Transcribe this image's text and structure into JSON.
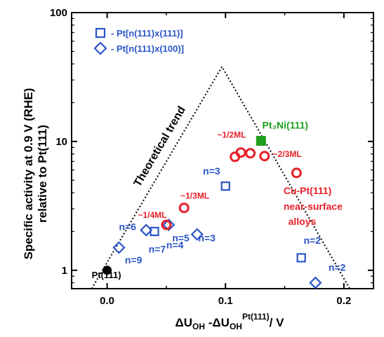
{
  "chart_data": {
    "type": "scatter",
    "xlabel": "ΔU_OH -ΔU_OH^Pt(111) / V",
    "ylabel_line1": "Specific activity at 0.9 V (RHE)",
    "ylabel_line2": "relative to Pt(111)",
    "xlim": [
      -0.03,
      0.225
    ],
    "ylim": [
      0.72,
      100
    ],
    "yscale": "log",
    "x_ticks": [
      0.0,
      0.1,
      0.2
    ],
    "x_tick_labels": [
      "0.0",
      "0.1",
      "0.2"
    ],
    "y_ticks": [
      1,
      10,
      100
    ],
    "y_tick_labels": [
      "1",
      "10",
      "100"
    ],
    "legend_position": "top-left",
    "legend": [
      {
        "marker": "square",
        "label": "- Pt[n(111)x(111)]"
      },
      {
        "marker": "diamond",
        "label": "- Pt[n(111)x(100)]"
      }
    ],
    "theoretical_trend": {
      "label": "Theoretical trend",
      "points": [
        [
          -0.013,
          0.72
        ],
        [
          0.097,
          38
        ],
        [
          0.205,
          0.72
        ]
      ]
    },
    "series": [
      {
        "name": "Pt(111)",
        "marker": "circle-filled",
        "color": "#000000",
        "points": [
          {
            "x": 0.0,
            "y": 1.0
          }
        ]
      },
      {
        "name": "Pt3Ni(111)",
        "marker": "square-filled",
        "color": "#1e9e1e",
        "points": [
          {
            "x": 0.13,
            "y": 10.1
          }
        ]
      },
      {
        "name": "- Pt[n(111)x(111)]",
        "marker": "square",
        "color": "#2a55c8",
        "points": [
          {
            "x": 0.04,
            "y": 2.0
          },
          {
            "x": 0.1,
            "y": 4.5
          },
          {
            "x": 0.164,
            "y": 1.25
          }
        ]
      },
      {
        "name": "- Pt[n(111)x(100)]",
        "marker": "diamond",
        "color": "#2a55c8",
        "points": [
          {
            "x": 0.01,
            "y": 1.5
          },
          {
            "x": 0.033,
            "y": 2.05
          },
          {
            "x": 0.052,
            "y": 2.25
          },
          {
            "x": 0.076,
            "y": 1.9
          },
          {
            "x": 0.176,
            "y": 0.8
          }
        ]
      },
      {
        "name": "Cu-Pt(111) near-surface alloys",
        "marker": "circle",
        "color": "#e8202a",
        "points": [
          {
            "x": 0.05,
            "y": 2.25
          },
          {
            "x": 0.065,
            "y": 3.05
          },
          {
            "x": 0.108,
            "y": 7.6
          },
          {
            "x": 0.113,
            "y": 8.2
          },
          {
            "x": 0.121,
            "y": 8.1
          },
          {
            "x": 0.133,
            "y": 7.7
          },
          {
            "x": 0.16,
            "y": 5.7
          }
        ]
      }
    ],
    "annotations": [
      {
        "text": "Pt(111)",
        "x": -0.013,
        "y": 0.87,
        "color": "#000000",
        "size": 13
      },
      {
        "text": "Pt₃Ni(111)",
        "x": 0.131,
        "y": 12.6,
        "color": "#1e9e1e",
        "size": 14
      },
      {
        "text": "~1/2ML",
        "x": 0.093,
        "y": 10.7,
        "color": "#e8202a",
        "size": 12
      },
      {
        "text": "~2/3ML",
        "x": 0.14,
        "y": 7.6,
        "color": "#e8202a",
        "size": 12
      },
      {
        "text": "~1/3ML",
        "x": 0.062,
        "y": 3.6,
        "color": "#e8202a",
        "size": 12
      },
      {
        "text": "~1/4ML",
        "x": 0.026,
        "y": 2.55,
        "color": "#e8202a",
        "size": 12
      },
      {
        "text": "Cu-Pt(111)",
        "x": 0.149,
        "y": 3.9,
        "color": "#e8202a",
        "size": 14
      },
      {
        "text": "near-surface",
        "x": 0.149,
        "y": 2.95,
        "color": "#e8202a",
        "size": 14
      },
      {
        "text": "alloys",
        "x": 0.153,
        "y": 2.25,
        "color": "#e8202a",
        "size": 14
      },
      {
        "text": "n=3",
        "x": 0.081,
        "y": 5.55,
        "color": "#2a55c8",
        "size": 14
      },
      {
        "text": "n=6",
        "x": 0.01,
        "y": 2.05,
        "color": "#2a55c8",
        "size": 14
      },
      {
        "text": "n=5",
        "x": 0.055,
        "y": 1.68,
        "color": "#2a55c8",
        "size": 14
      },
      {
        "text": "n=3",
        "x": 0.077,
        "y": 1.68,
        "color": "#2a55c8",
        "size": 14
      },
      {
        "text": "n=4",
        "x": 0.05,
        "y": 1.48,
        "color": "#2a55c8",
        "size": 14
      },
      {
        "text": "n=7",
        "x": 0.035,
        "y": 1.37,
        "color": "#2a55c8",
        "size": 14
      },
      {
        "text": "n=9",
        "x": 0.015,
        "y": 1.13,
        "color": "#2a55c8",
        "size": 14
      },
      {
        "text": "n=2",
        "x": 0.166,
        "y": 1.6,
        "color": "#2a55c8",
        "size": 14
      },
      {
        "text": "n=2",
        "x": 0.187,
        "y": 0.99,
        "color": "#2a55c8",
        "size": 14
      }
    ]
  }
}
